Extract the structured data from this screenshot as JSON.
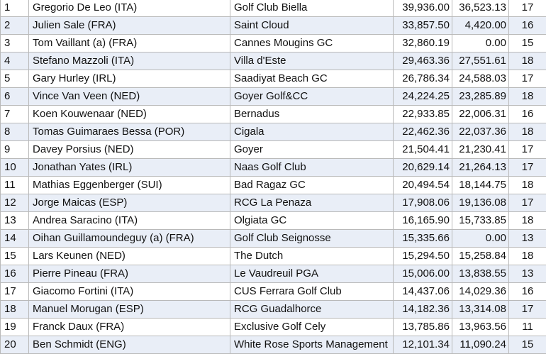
{
  "rows": [
    {
      "rank": "1",
      "player": "Gregorio De Leo (ITA)",
      "club": "Golf Club Biella",
      "value1": "39,936.00",
      "value2": "36,523.13",
      "count": "17"
    },
    {
      "rank": "2",
      "player": "Julien Sale (FRA)",
      "club": "Saint Cloud",
      "value1": "33,857.50",
      "value2": "4,420.00",
      "count": "16"
    },
    {
      "rank": "3",
      "player": "Tom Vaillant (a) (FRA)",
      "club": "Cannes Mougins GC",
      "value1": "32,860.19",
      "value2": "0.00",
      "count": "15"
    },
    {
      "rank": "4",
      "player": "Stefano Mazzoli (ITA)",
      "club": "Villa d'Este",
      "value1": "29,463.36",
      "value2": "27,551.61",
      "count": "18"
    },
    {
      "rank": "5",
      "player": "Gary Hurley (IRL)",
      "club": "Saadiyat Beach GC",
      "value1": "26,786.34",
      "value2": "24,588.03",
      "count": "17"
    },
    {
      "rank": "6",
      "player": "Vince Van Veen (NED)",
      "club": "Goyer Golf&CC",
      "value1": "24,224.25",
      "value2": "23,285.89",
      "count": "18"
    },
    {
      "rank": "7",
      "player": "Koen Kouwenaar (NED)",
      "club": "Bernadus",
      "value1": "22,933.85",
      "value2": "22,006.31",
      "count": "16"
    },
    {
      "rank": "8",
      "player": "Tomas Guimaraes Bessa (POR)",
      "club": "Cigala",
      "value1": "22,462.36",
      "value2": "22,037.36",
      "count": "18"
    },
    {
      "rank": "9",
      "player": "Davey Porsius (NED)",
      "club": "Goyer",
      "value1": "21,504.41",
      "value2": "21,230.41",
      "count": "17"
    },
    {
      "rank": "10",
      "player": "Jonathan Yates (IRL)",
      "club": "Naas Golf Club",
      "value1": "20,629.14",
      "value2": "21,264.13",
      "count": "17"
    },
    {
      "rank": "11",
      "player": "Mathias Eggenberger (SUI)",
      "club": "Bad Ragaz GC",
      "value1": "20,494.54",
      "value2": "18,144.75",
      "count": "18"
    },
    {
      "rank": "12",
      "player": "Jorge Maicas (ESP)",
      "club": "RCG La Penaza",
      "value1": "17,908.06",
      "value2": "19,136.08",
      "count": "17"
    },
    {
      "rank": "13",
      "player": "Andrea Saracino (ITA)",
      "club": "Olgiata GC",
      "value1": "16,165.90",
      "value2": "15,733.85",
      "count": "18"
    },
    {
      "rank": "14",
      "player": "Oihan Guillamoundeguy (a) (FRA)",
      "club": "Golf Club Seignosse",
      "value1": "15,335.66",
      "value2": "0.00",
      "count": "13"
    },
    {
      "rank": "15",
      "player": "Lars Keunen (NED)",
      "club": "The Dutch",
      "value1": "15,294.50",
      "value2": "15,258.84",
      "count": "18"
    },
    {
      "rank": "16",
      "player": "Pierre Pineau (FRA)",
      "club": "Le Vaudreuil PGA",
      "value1": "15,006.00",
      "value2": "13,838.55",
      "count": "13"
    },
    {
      "rank": "17",
      "player": "Giacomo Fortini (ITA)",
      "club": "CUS Ferrara Golf Club",
      "value1": "14,437.06",
      "value2": "14,029.36",
      "count": "16"
    },
    {
      "rank": "18",
      "player": "Manuel Morugan (ESP)",
      "club": "RCG Guadalhorce",
      "value1": "14,182.36",
      "value2": "13,314.08",
      "count": "17"
    },
    {
      "rank": "19",
      "player": "Franck Daux (FRA)",
      "club": "Exclusive Golf Cely",
      "value1": "13,785.86",
      "value2": "13,963.56",
      "count": "11"
    },
    {
      "rank": "20",
      "player": "Ben Schmidt (ENG)",
      "club": "White Rose Sports Management",
      "value1": "12,101.34",
      "value2": "11,090.24",
      "count": "15"
    }
  ]
}
